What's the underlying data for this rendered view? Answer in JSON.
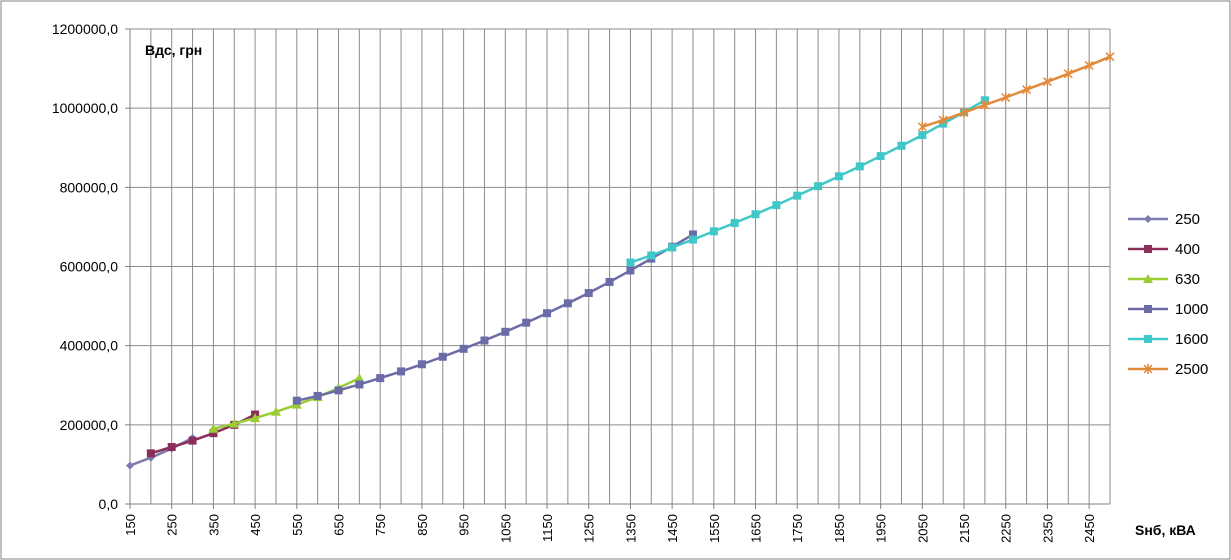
{
  "chart_data": {
    "type": "line",
    "ylabel": "Вдс, грн",
    "xlabel": "Sнб, кВА",
    "ylim": [
      0,
      1200000
    ],
    "xlim": [
      150,
      2500
    ],
    "y_ticks": [
      {
        "value": 0,
        "label": "0,0"
      },
      {
        "value": 200000,
        "label": "200000,0"
      },
      {
        "value": 400000,
        "label": "400000,0"
      },
      {
        "value": 600000,
        "label": "600000,0"
      },
      {
        "value": 800000,
        "label": "800000,0"
      },
      {
        "value": 1000000,
        "label": "1000000,0"
      },
      {
        "value": 1200000,
        "label": "1200000,0"
      }
    ],
    "x_ticks": [
      "150",
      "250",
      "350",
      "450",
      "550",
      "650",
      "750",
      "850",
      "950",
      "1050",
      "1150",
      "1250",
      "1350",
      "1450",
      "1550",
      "1650",
      "1750",
      "1850",
      "1950",
      "2050",
      "2150",
      "2250",
      "2350",
      "2450"
    ],
    "grid": true,
    "legend": "right",
    "series": [
      {
        "name": "250",
        "color": "#7b7bb0",
        "marker": "diamond",
        "points": [
          [
            150,
            97000
          ],
          [
            200,
            117000
          ],
          [
            250,
            140000
          ],
          [
            300,
            167000
          ]
        ]
      },
      {
        "name": "400",
        "color": "#8b2e5a",
        "marker": "square",
        "points": [
          [
            200,
            128000
          ],
          [
            250,
            144000
          ],
          [
            300,
            160000
          ],
          [
            350,
            179000
          ],
          [
            400,
            200000
          ],
          [
            450,
            226000
          ]
        ]
      },
      {
        "name": "630",
        "color": "#9acd32",
        "marker": "triangle",
        "points": [
          [
            350,
            190000
          ],
          [
            400,
            203000
          ],
          [
            450,
            217000
          ],
          [
            500,
            233000
          ],
          [
            550,
            251000
          ],
          [
            600,
            270000
          ],
          [
            650,
            293000
          ],
          [
            700,
            318000
          ]
        ]
      },
      {
        "name": "1000",
        "color": "#6b6ba8",
        "marker": "square",
        "points": [
          [
            550,
            261000
          ],
          [
            600,
            273000
          ],
          [
            650,
            287000
          ],
          [
            700,
            302000
          ],
          [
            750,
            318000
          ],
          [
            800,
            335000
          ],
          [
            850,
            353000
          ],
          [
            900,
            372000
          ],
          [
            950,
            392000
          ],
          [
            1000,
            413000
          ],
          [
            1050,
            435000
          ],
          [
            1100,
            458000
          ],
          [
            1150,
            482000
          ],
          [
            1200,
            507000
          ],
          [
            1250,
            533000
          ],
          [
            1300,
            561000
          ],
          [
            1350,
            590000
          ],
          [
            1400,
            620000
          ],
          [
            1450,
            650000
          ],
          [
            1500,
            681000
          ]
        ]
      },
      {
        "name": "1600",
        "color": "#40c8c8",
        "marker": "square",
        "points": [
          [
            1350,
            610000
          ],
          [
            1400,
            628000
          ],
          [
            1450,
            648000
          ],
          [
            1500,
            668000
          ],
          [
            1550,
            689000
          ],
          [
            1600,
            710000
          ],
          [
            1650,
            732000
          ],
          [
            1700,
            755000
          ],
          [
            1750,
            779000
          ],
          [
            1800,
            803000
          ],
          [
            1850,
            828000
          ],
          [
            1900,
            853000
          ],
          [
            1950,
            879000
          ],
          [
            2000,
            905000
          ],
          [
            2050,
            932000
          ],
          [
            2100,
            961000
          ],
          [
            2150,
            990000
          ],
          [
            2200,
            1020000
          ]
        ]
      },
      {
        "name": "2500",
        "color": "#e08a3c",
        "marker": "star",
        "points": [
          [
            2050,
            953000
          ],
          [
            2100,
            970000
          ],
          [
            2150,
            989000
          ],
          [
            2200,
            1008000
          ],
          [
            2250,
            1027000
          ],
          [
            2300,
            1047000
          ],
          [
            2350,
            1067000
          ],
          [
            2400,
            1087000
          ],
          [
            2450,
            1108000
          ],
          [
            2500,
            1130000
          ]
        ]
      }
    ]
  }
}
